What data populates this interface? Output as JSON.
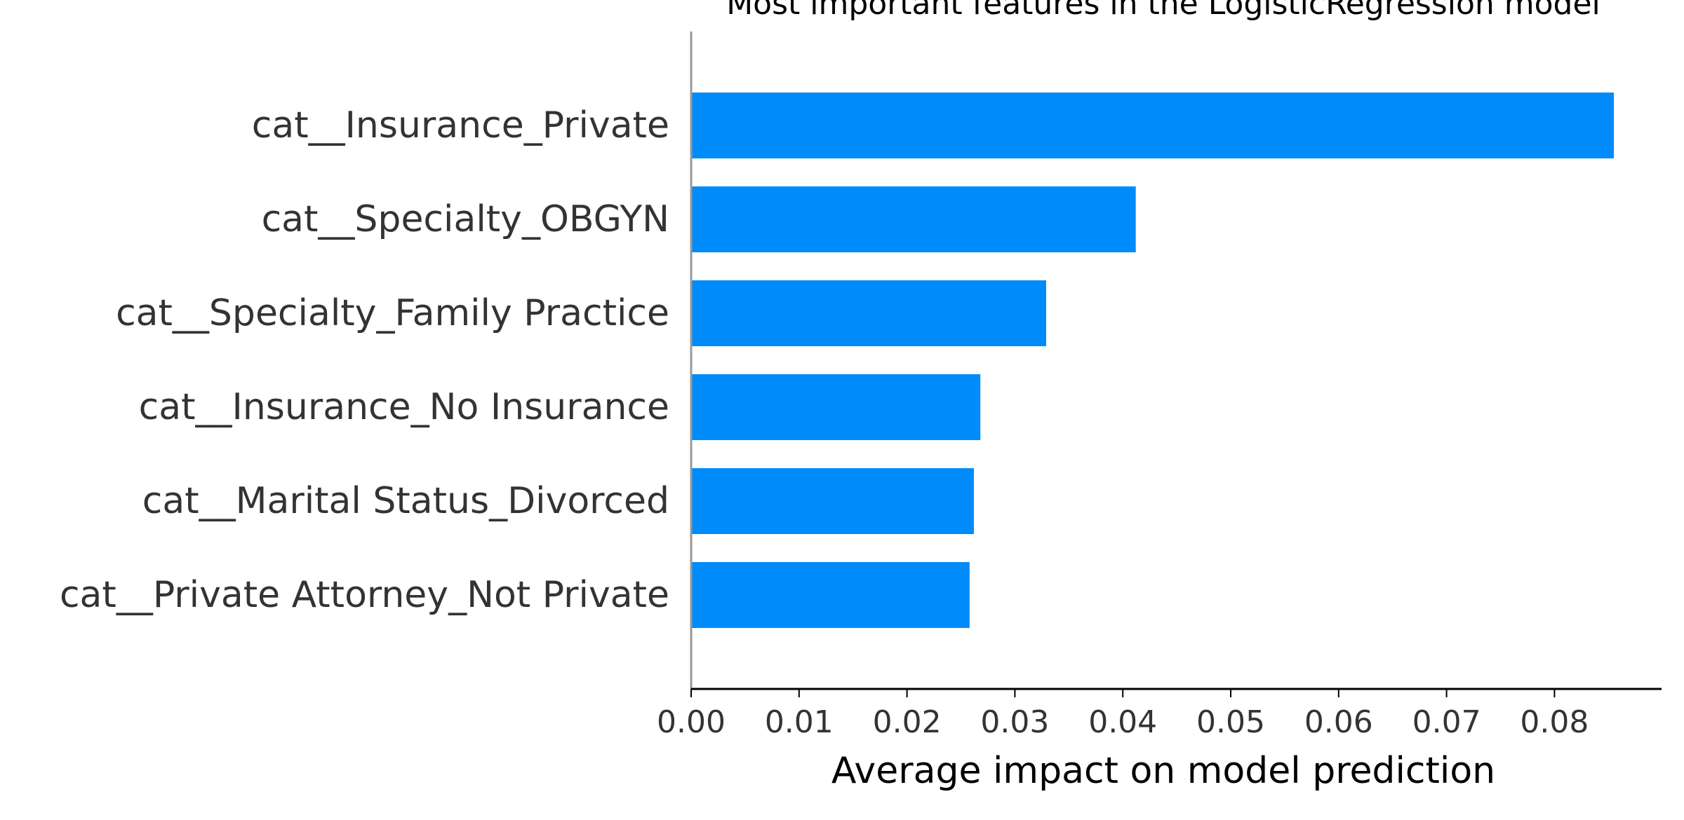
{
  "chart_data": {
    "type": "bar",
    "orientation": "horizontal",
    "title": "Most important features in the LogisticRegression model",
    "xlabel": "Average impact on model prediction",
    "ylabel": "",
    "categories": [
      "cat__Insurance_Private",
      "cat__Specialty_OBGYN",
      "cat__Specialty_Family Practice",
      "cat__Insurance_No Insurance",
      "cat__Marital Status_Divorced",
      "cat__Private Attorney_Not Private"
    ],
    "values": [
      0.0855,
      0.0412,
      0.0329,
      0.0268,
      0.0262,
      0.0258
    ],
    "xlim": [
      0,
      0.09
    ],
    "xticks": [
      0.0,
      0.01,
      0.02,
      0.03,
      0.04,
      0.05,
      0.06,
      0.07,
      0.08
    ],
    "xtick_labels": [
      "0.00",
      "0.01",
      "0.02",
      "0.03",
      "0.04",
      "0.05",
      "0.06",
      "0.07",
      "0.08"
    ],
    "grid": false,
    "bar_color": "#008bfb",
    "axis_color": "#000000",
    "zero_line_color": "#999999"
  }
}
